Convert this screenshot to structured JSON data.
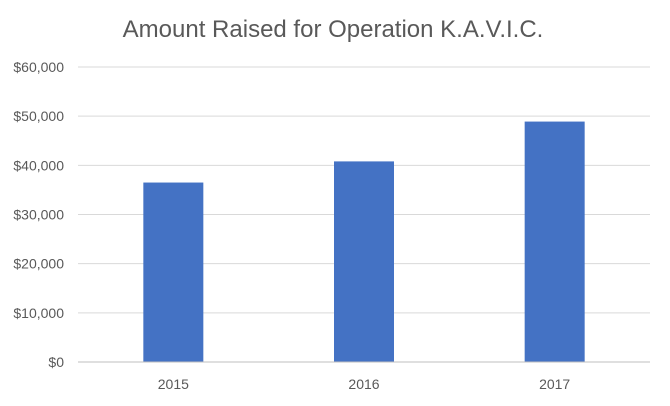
{
  "chart_data": {
    "type": "bar",
    "title": "Amount Raised for Operation K.A.V.I.C.",
    "xlabel": "",
    "ylabel": "",
    "categories": [
      "2015",
      "2016",
      "2017"
    ],
    "values": [
      36500,
      40800,
      48900
    ],
    "ylim": [
      0,
      60000
    ],
    "y_ticks": [
      0,
      10000,
      20000,
      30000,
      40000,
      50000,
      60000
    ],
    "y_tick_labels": [
      "$0",
      "$10,000",
      "$20,000",
      "$30,000",
      "$40,000",
      "$50,000",
      "$60,000"
    ],
    "grid": "horizontal",
    "legend": "none",
    "bar_color": "#4472c4"
  }
}
